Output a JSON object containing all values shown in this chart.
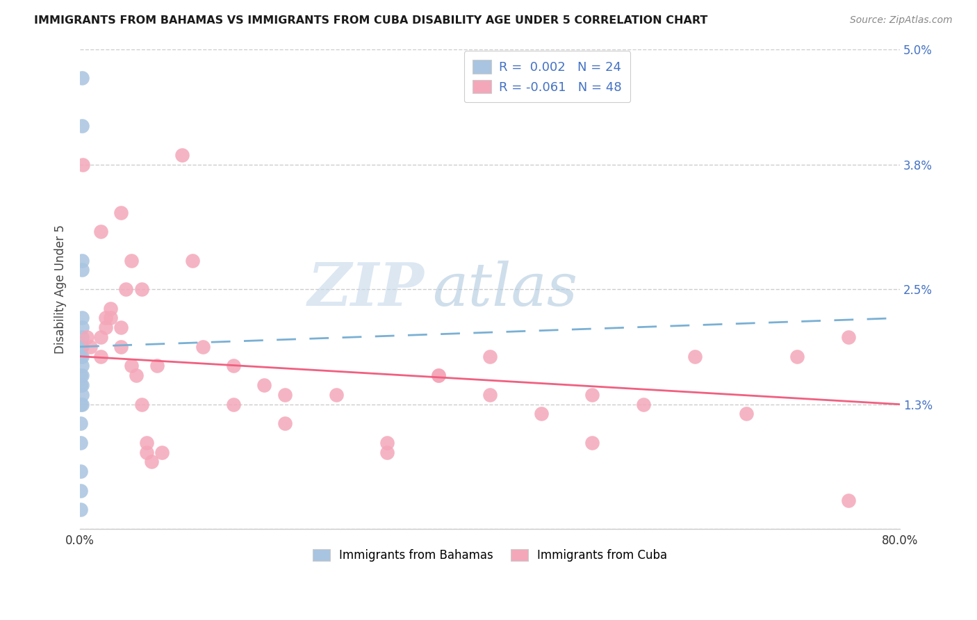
{
  "title": "IMMIGRANTS FROM BAHAMAS VS IMMIGRANTS FROM CUBA DISABILITY AGE UNDER 5 CORRELATION CHART",
  "source": "Source: ZipAtlas.com",
  "xlabel": "",
  "ylabel": "Disability Age Under 5",
  "xmin": 0.0,
  "xmax": 0.8,
  "ymin": 0.0,
  "ymax": 0.05,
  "yticks": [
    0.0,
    0.013,
    0.025,
    0.038,
    0.05
  ],
  "ytick_labels": [
    "",
    "1.3%",
    "2.5%",
    "3.8%",
    "5.0%"
  ],
  "xticks": [
    0.0,
    0.1,
    0.2,
    0.3,
    0.4,
    0.5,
    0.6,
    0.7,
    0.8
  ],
  "xtick_labels": [
    "0.0%",
    "",
    "",
    "",
    "",
    "",
    "",
    "",
    "80.0%"
  ],
  "legend_r_bahamas": "R =  0.002",
  "legend_n_bahamas": "N = 24",
  "legend_r_cuba": "R = -0.061",
  "legend_n_cuba": "N = 48",
  "bahamas_color": "#a8c4e0",
  "cuba_color": "#f4a7b9",
  "trendline_bahamas_color": "#7ab0d4",
  "trendline_cuba_color": "#f06080",
  "watermark_zip": "ZIP",
  "watermark_atlas": "atlas",
  "bahamas_x": [
    0.002,
    0.002,
    0.002,
    0.002,
    0.002,
    0.002,
    0.002,
    0.002,
    0.002,
    0.002,
    0.002,
    0.002,
    0.002,
    0.002,
    0.001,
    0.001,
    0.001,
    0.001,
    0.001,
    0.001,
    0.001,
    0.001,
    0.001,
    0.001
  ],
  "bahamas_y": [
    0.047,
    0.042,
    0.028,
    0.027,
    0.022,
    0.021,
    0.02,
    0.019,
    0.018,
    0.017,
    0.016,
    0.015,
    0.014,
    0.013,
    0.019,
    0.018,
    0.016,
    0.015,
    0.013,
    0.011,
    0.009,
    0.006,
    0.004,
    0.002
  ],
  "cuba_x": [
    0.003,
    0.007,
    0.01,
    0.02,
    0.02,
    0.02,
    0.025,
    0.025,
    0.03,
    0.03,
    0.04,
    0.04,
    0.04,
    0.045,
    0.05,
    0.05,
    0.055,
    0.06,
    0.06,
    0.065,
    0.065,
    0.07,
    0.075,
    0.08,
    0.1,
    0.11,
    0.12,
    0.15,
    0.15,
    0.18,
    0.2,
    0.2,
    0.25,
    0.3,
    0.3,
    0.35,
    0.35,
    0.4,
    0.4,
    0.45,
    0.5,
    0.5,
    0.55,
    0.6,
    0.65,
    0.7,
    0.75,
    0.75
  ],
  "cuba_y": [
    0.038,
    0.02,
    0.019,
    0.031,
    0.02,
    0.018,
    0.022,
    0.021,
    0.023,
    0.022,
    0.033,
    0.021,
    0.019,
    0.025,
    0.028,
    0.017,
    0.016,
    0.025,
    0.013,
    0.009,
    0.008,
    0.007,
    0.017,
    0.008,
    0.039,
    0.028,
    0.019,
    0.017,
    0.013,
    0.015,
    0.014,
    0.011,
    0.014,
    0.009,
    0.008,
    0.016,
    0.016,
    0.018,
    0.014,
    0.012,
    0.014,
    0.009,
    0.013,
    0.018,
    0.012,
    0.018,
    0.02,
    0.003
  ],
  "background_color": "#ffffff",
  "grid_color": "#cccccc",
  "trendline_bahamas_start_y": 0.019,
  "trendline_bahamas_end_y": 0.022,
  "trendline_cuba_start_y": 0.018,
  "trendline_cuba_end_y": 0.013
}
